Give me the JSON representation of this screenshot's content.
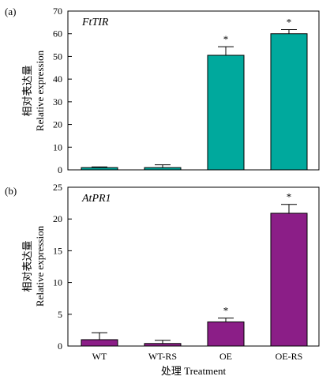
{
  "figure": {
    "xlabel": "处理 Treatment",
    "categories": [
      "WT",
      "WT-RS",
      "OE",
      "OE-RS"
    ]
  },
  "chart_data": [
    {
      "type": "bar",
      "panel_label": "(a)",
      "title": "FtTIR",
      "ylabel_cn": "相对表达量",
      "ylabel_en": "Relative expression",
      "categories": [
        "WT",
        "WT-RS",
        "OE",
        "OE-RS"
      ],
      "values": [
        1.0,
        1.0,
        50.5,
        60.0
      ],
      "errors": [
        0.3,
        1.2,
        3.8,
        1.8
      ],
      "significance": [
        "",
        "",
        "*",
        "*"
      ],
      "ylim": [
        0,
        70
      ],
      "yticks": [
        0,
        10,
        20,
        30,
        40,
        50,
        60,
        70
      ],
      "color": "#00a99d"
    },
    {
      "type": "bar",
      "panel_label": "(b)",
      "title": "AtPR1",
      "ylabel_cn": "相对表达量",
      "ylabel_en": "Relative expression",
      "categories": [
        "WT",
        "WT-RS",
        "OE",
        "OE-RS"
      ],
      "values": [
        1.0,
        0.4,
        3.8,
        20.9
      ],
      "errors": [
        1.1,
        0.5,
        0.6,
        1.4
      ],
      "significance": [
        "",
        "",
        "*",
        "*"
      ],
      "ylim": [
        0,
        25
      ],
      "yticks": [
        0,
        5,
        10,
        15,
        20,
        25
      ],
      "color": "#8b1e87"
    }
  ]
}
